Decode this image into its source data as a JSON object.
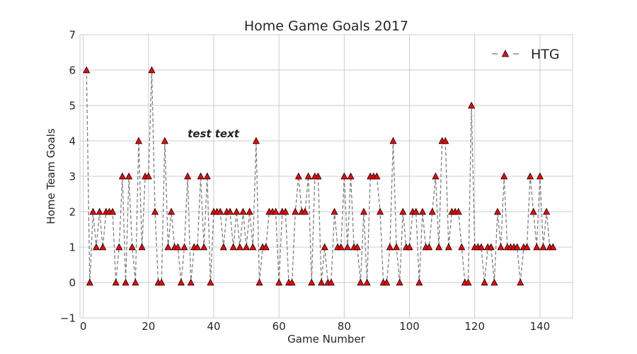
{
  "chart_data": {
    "type": "line",
    "title": "Home Game Goals 2017",
    "xlabel": "Game Number",
    "ylabel": "Home Team Goals",
    "xlim": [
      -1,
      150
    ],
    "ylim": [
      -1,
      7
    ],
    "x_ticks": [
      0,
      20,
      40,
      60,
      80,
      100,
      120,
      140
    ],
    "y_ticks": [
      -1,
      0,
      1,
      2,
      3,
      4,
      5,
      6,
      7
    ],
    "grid": true,
    "legend": {
      "position": "top-right",
      "entries": [
        "HTG"
      ]
    },
    "annotation": {
      "text": "test text",
      "x": 32,
      "y": 4.1
    },
    "series": [
      {
        "name": "HTG",
        "color": "#ff0000",
        "edge_color": "#000000",
        "line_color": "#808080",
        "line_style": "dashed",
        "marker": "triangle-up",
        "x": [
          1,
          2,
          3,
          4,
          5,
          6,
          7,
          8,
          9,
          10,
          11,
          12,
          13,
          14,
          15,
          16,
          17,
          18,
          19,
          20,
          21,
          22,
          23,
          24,
          25,
          26,
          27,
          28,
          29,
          30,
          31,
          32,
          33,
          34,
          35,
          36,
          37,
          38,
          39,
          40,
          41,
          42,
          43,
          44,
          45,
          46,
          47,
          48,
          49,
          50,
          51,
          52,
          53,
          54,
          55,
          56,
          57,
          58,
          59,
          60,
          61,
          62,
          63,
          64,
          65,
          66,
          67,
          68,
          69,
          70,
          71,
          72,
          73,
          74,
          75,
          76,
          77,
          78,
          79,
          80,
          81,
          82,
          83,
          84,
          85,
          86,
          87,
          88,
          89,
          90,
          91,
          92,
          93,
          94,
          95,
          96,
          97,
          98,
          99,
          100,
          101,
          102,
          103,
          104,
          105,
          106,
          107,
          108,
          109,
          110,
          111,
          112,
          113,
          114,
          115,
          116,
          117,
          118,
          119,
          120,
          121,
          122,
          123,
          124,
          125,
          126,
          127,
          128,
          129,
          130,
          131,
          132,
          133,
          134,
          135,
          136,
          137,
          138,
          139,
          140,
          141,
          142,
          143,
          144
        ],
        "values": [
          6,
          0,
          2,
          1,
          2,
          1,
          2,
          2,
          2,
          0,
          1,
          3,
          0,
          3,
          1,
          0,
          4,
          1,
          3,
          3,
          6,
          2,
          0,
          0,
          4,
          1,
          2,
          1,
          1,
          0,
          1,
          3,
          0,
          1,
          1,
          3,
          1,
          3,
          0,
          2,
          2,
          2,
          1,
          2,
          2,
          1,
          2,
          1,
          2,
          1,
          2,
          1,
          4,
          0,
          1,
          1,
          2,
          2,
          2,
          0,
          2,
          2,
          0,
          0,
          2,
          3,
          2,
          2,
          3,
          0,
          3,
          3,
          0,
          1,
          0,
          0,
          2,
          1,
          1,
          3,
          1,
          3,
          1,
          1,
          0,
          2,
          0,
          3,
          3,
          3,
          2,
          0,
          0,
          1,
          4,
          1,
          0,
          2,
          1,
          1,
          2,
          2,
          0,
          2,
          1,
          1,
          2,
          3,
          1,
          4,
          4,
          1,
          2,
          2,
          2,
          1,
          0,
          0,
          5,
          1,
          1,
          1,
          0,
          1,
          1,
          0,
          2,
          1,
          3,
          1,
          1,
          1,
          1,
          0,
          1,
          1,
          3,
          2,
          1,
          3,
          1,
          2,
          1,
          1
        ]
      }
    ]
  }
}
